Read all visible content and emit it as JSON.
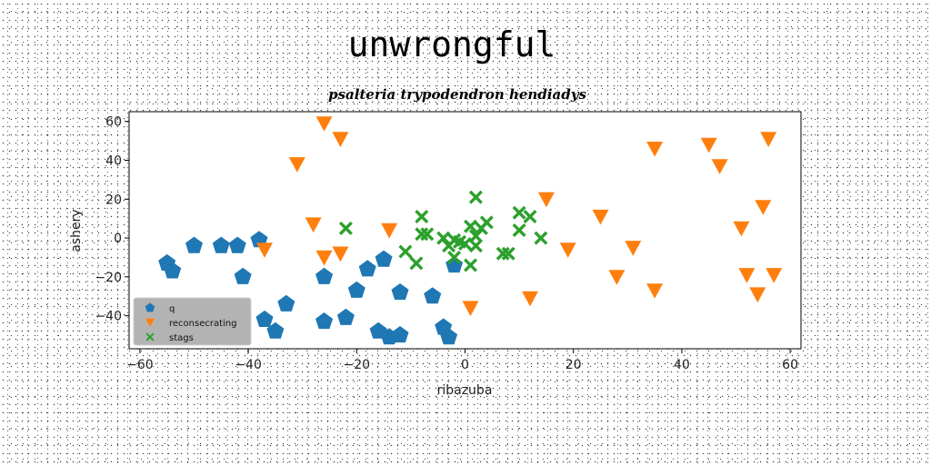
{
  "chart_data": {
    "type": "scatter",
    "title": "unwrongful",
    "subtitle": "psalteria trypodendron hendiadys",
    "xlabel": "ribazuba",
    "ylabel": "ashery",
    "xlim": [
      -62,
      62
    ],
    "ylim": [
      -57,
      65
    ],
    "xticks": [
      -60,
      -40,
      -20,
      0,
      20,
      40,
      60
    ],
    "yticks": [
      -40,
      -20,
      0,
      20,
      40,
      60
    ],
    "grid": false,
    "legend_position": "lower-left",
    "series": [
      {
        "name": "q",
        "marker": "pentagon",
        "color": "#1f77b4",
        "points": [
          [
            -55,
            -13
          ],
          [
            -54,
            -17
          ],
          [
            -50,
            -4
          ],
          [
            -45,
            -4
          ],
          [
            -42,
            -4
          ],
          [
            -38,
            -1
          ],
          [
            -41,
            -20
          ],
          [
            -37,
            -42
          ],
          [
            -35,
            -48
          ],
          [
            -33,
            -34
          ],
          [
            -26,
            -20
          ],
          [
            -26,
            -43
          ],
          [
            -22,
            -41
          ],
          [
            -20,
            -27
          ],
          [
            -18,
            -16
          ],
          [
            -16,
            -48
          ],
          [
            -15,
            -11
          ],
          [
            -14,
            -51
          ],
          [
            -12,
            -50
          ],
          [
            -12,
            -28
          ],
          [
            -6,
            -30
          ],
          [
            -4,
            -46
          ],
          [
            -3,
            -51
          ],
          [
            -2,
            -14
          ]
        ]
      },
      {
        "name": "reconsecrating",
        "marker": "triangle-down",
        "color": "#ff7f0e",
        "points": [
          [
            -26,
            59
          ],
          [
            -23,
            51
          ],
          [
            -31,
            38
          ],
          [
            -28,
            7
          ],
          [
            -26,
            -10
          ],
          [
            -23,
            -8
          ],
          [
            -37,
            -6
          ],
          [
            -14,
            4
          ],
          [
            1,
            -36
          ],
          [
            12,
            -31
          ],
          [
            15,
            20
          ],
          [
            19,
            -6
          ],
          [
            25,
            11
          ],
          [
            28,
            -20
          ],
          [
            31,
            -5
          ],
          [
            35,
            -27
          ],
          [
            35,
            46
          ],
          [
            45,
            48
          ],
          [
            47,
            37
          ],
          [
            51,
            5
          ],
          [
            52,
            -19
          ],
          [
            54,
            -29
          ],
          [
            55,
            16
          ],
          [
            56,
            51
          ],
          [
            57,
            -19
          ]
        ]
      },
      {
        "name": "stags",
        "marker": "x-filled",
        "color": "#2ca02c",
        "points": [
          [
            -22,
            5
          ],
          [
            -11,
            -7
          ],
          [
            -9,
            -13
          ],
          [
            -8,
            11
          ],
          [
            -8,
            2
          ],
          [
            -7,
            2
          ],
          [
            -4,
            0
          ],
          [
            -3,
            -4
          ],
          [
            -2,
            -1
          ],
          [
            -2,
            -10
          ],
          [
            -1,
            -2
          ],
          [
            0,
            -3
          ],
          [
            1,
            -14
          ],
          [
            1,
            6
          ],
          [
            2,
            -4
          ],
          [
            2,
            21
          ],
          [
            2,
            1
          ],
          [
            3,
            5
          ],
          [
            4,
            8
          ],
          [
            7,
            -8
          ],
          [
            8,
            -8
          ],
          [
            10,
            13
          ],
          [
            10,
            4
          ],
          [
            12,
            11
          ],
          [
            14,
            0
          ]
        ]
      }
    ]
  }
}
